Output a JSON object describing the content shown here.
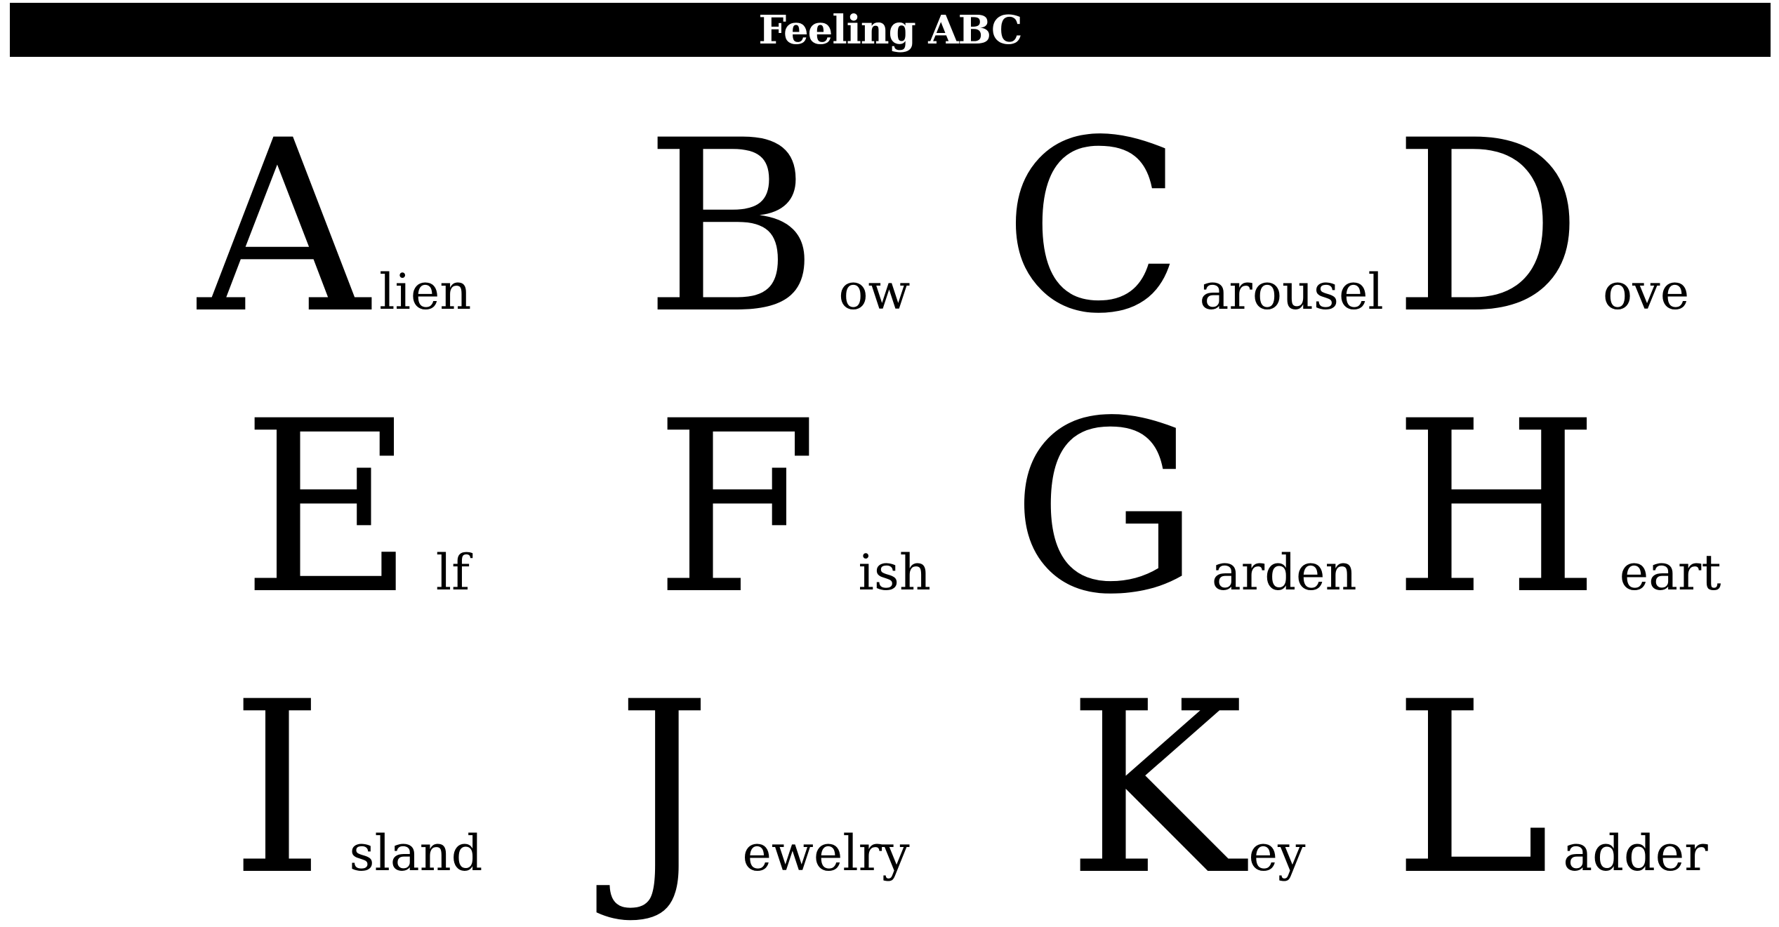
{
  "title": "Feeling ABC",
  "words": [
    {
      "letter": "A",
      "rest": "lien"
    },
    {
      "letter": "B",
      "rest": "ow"
    },
    {
      "letter": "C",
      "rest": "arousel"
    },
    {
      "letter": "D",
      "rest": "ove"
    },
    {
      "letter": "E",
      "rest": "lf"
    },
    {
      "letter": "F",
      "rest": "ish"
    },
    {
      "letter": "G",
      "rest": "arden"
    },
    {
      "letter": "H",
      "rest": "eart"
    },
    {
      "letter": "I",
      "rest": "sland"
    },
    {
      "letter": "J",
      "rest": "ewelry"
    },
    {
      "letter": "K",
      "rest": "ey"
    },
    {
      "letter": "L",
      "rest": "adder"
    }
  ]
}
